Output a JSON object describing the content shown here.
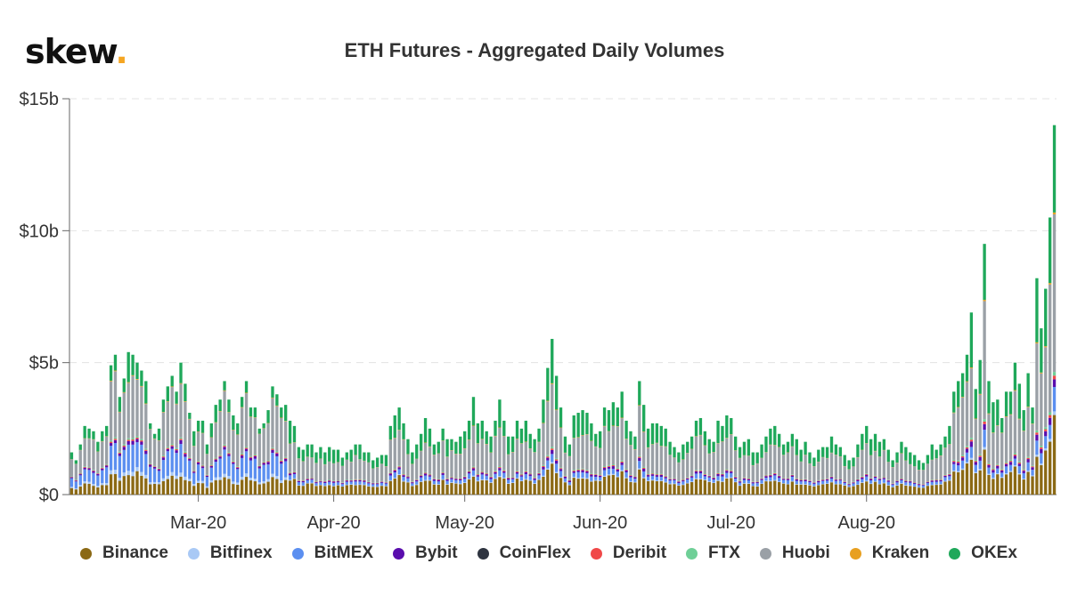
{
  "header": {
    "logo_text": "skew",
    "logo_dot": "."
  },
  "chart_data": {
    "type": "bar",
    "stacked": true,
    "title": "ETH Futures - Aggregated Daily Volumes",
    "xlabel": "",
    "ylabel": "",
    "ylim": [
      0,
      15
    ],
    "y_ticks": [
      {
        "value": 0,
        "label": "$0"
      },
      {
        "value": 5,
        "label": "$5b"
      },
      {
        "value": 10,
        "label": "$10b"
      },
      {
        "value": 15,
        "label": "$15b"
      }
    ],
    "x_ticks": [
      {
        "day": 29,
        "label": "Mar-20"
      },
      {
        "day": 60,
        "label": "Apr-20"
      },
      {
        "day": 90,
        "label": "May-20"
      },
      {
        "day": 121,
        "label": "Jun-20"
      },
      {
        "day": 151,
        "label": "Jul-20"
      },
      {
        "day": 182,
        "label": "Aug-20"
      }
    ],
    "grid": true,
    "legend_position": "bottom",
    "series_names": [
      "Binance",
      "Bitfinex",
      "BitMEX",
      "Bybit",
      "CoinFlex",
      "Deribit",
      "FTX",
      "Huobi",
      "Kraken",
      "OKEx"
    ],
    "series_colors": [
      "#8b6914",
      "#a9c9f5",
      "#5b8ff0",
      "#5a0dad",
      "#2e3440",
      "#f04848",
      "#6fcf97",
      "#9aa0a6",
      "#e8a020",
      "#1fa85a"
    ],
    "day_totals": [
      1.6,
      1.3,
      1.9,
      2.6,
      2.5,
      2.4,
      2.0,
      2.4,
      2.6,
      4.9,
      5.3,
      3.7,
      4.4,
      5.4,
      5.3,
      5.0,
      4.7,
      4.3,
      2.7,
      2.3,
      2.5,
      3.6,
      4.1,
      4.5,
      3.9,
      5.0,
      4.2,
      3.1,
      2.4,
      2.8,
      2.8,
      1.9,
      2.7,
      3.4,
      3.6,
      4.3,
      3.6,
      3.0,
      2.7,
      3.7,
      4.3,
      3.3,
      3.3,
      2.5,
      2.7,
      3.2,
      4.1,
      3.8,
      3.3,
      3.4,
      2.8,
      2.6,
      1.8,
      1.7,
      1.9,
      1.9,
      1.6,
      1.8,
      1.6,
      1.8,
      1.7,
      1.7,
      1.4,
      1.6,
      1.7,
      1.9,
      1.9,
      1.6,
      1.6,
      1.3,
      1.4,
      1.5,
      1.5,
      2.6,
      3.0,
      3.3,
      2.7,
      2.1,
      1.6,
      1.9,
      2.3,
      2.9,
      2.5,
      1.9,
      2.0,
      2.5,
      2.1,
      2.1,
      2.0,
      2.2,
      2.4,
      2.8,
      3.7,
      2.7,
      2.8,
      2.4,
      2.2,
      2.8,
      3.6,
      2.8,
      2.2,
      2.2,
      2.8,
      2.5,
      2.8,
      2.3,
      2.1,
      2.5,
      3.6,
      4.8,
      5.9,
      4.5,
      3.3,
      2.2,
      1.9,
      3.0,
      3.1,
      3.2,
      3.1,
      2.7,
      2.3,
      2.4,
      3.3,
      3.2,
      3.5,
      3.3,
      3.9,
      2.8,
      2.4,
      2.2,
      4.3,
      3.4,
      2.5,
      2.7,
      2.7,
      2.6,
      2.5,
      2.0,
      1.8,
      1.6,
      1.9,
      2.0,
      2.2,
      2.8,
      2.9,
      2.4,
      2.1,
      2.0,
      2.8,
      2.6,
      3.0,
      2.9,
      2.2,
      1.8,
      2.0,
      2.1,
      1.6,
      1.6,
      1.9,
      2.2,
      2.5,
      2.6,
      2.3,
      1.9,
      2.0,
      2.3,
      2.1,
      1.7,
      2.0,
      1.6,
      1.4,
      1.7,
      1.8,
      1.8,
      2.2,
      1.9,
      1.8,
      1.5,
      1.3,
      1.4,
      1.9,
      2.3,
      2.6,
      2.1,
      2.3,
      2.0,
      2.1,
      1.7,
      1.3,
      1.6,
      2.0,
      1.8,
      1.6,
      1.5,
      1.3,
      1.2,
      1.5,
      1.9,
      1.7,
      1.9,
      2.2,
      2.6,
      3.9,
      4.3,
      4.6,
      5.3,
      6.9,
      4.0,
      5.1,
      9.5,
      4.3,
      3.5,
      3.6,
      2.9,
      3.9,
      3.9,
      5.0,
      4.2,
      3.2,
      4.6,
      3.3,
      8.2,
      6.3,
      7.8,
      10.5,
      14.0
    ],
    "note": "day_totals are approximate total daily volume in $b read from stacked bar heights; split between series follows the visible composition (Binance base, BitMEX/Bitfinex blue, Bybit purple, Huobi grey, OKEx green top)."
  },
  "legend": {
    "items": [
      "Binance",
      "Bitfinex",
      "BitMEX",
      "Bybit",
      "CoinFlex",
      "Deribit",
      "FTX",
      "Huobi",
      "Kraken",
      "OKEx"
    ]
  }
}
